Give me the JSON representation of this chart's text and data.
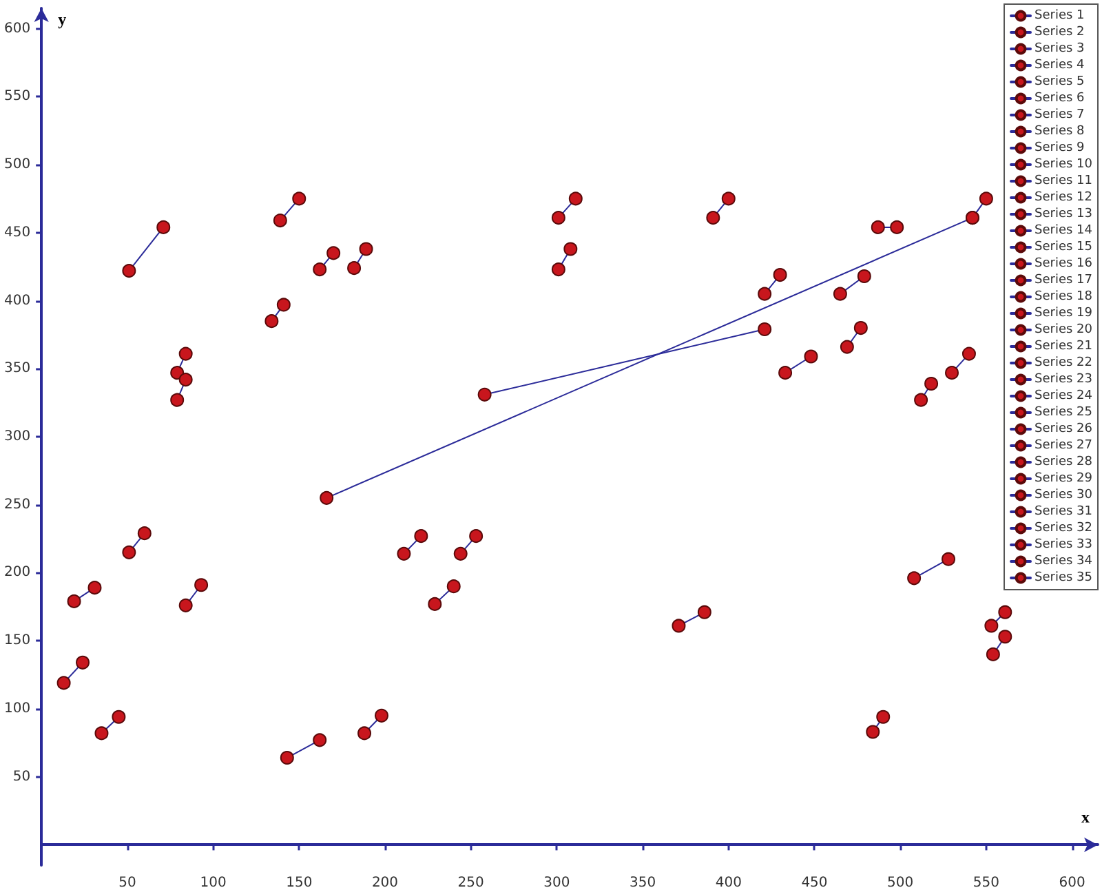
{
  "chart_data": {
    "type": "line",
    "xlabel": "x",
    "ylabel": "y",
    "xlim": [
      0,
      615
    ],
    "ylim": [
      -15,
      615
    ],
    "xticks": [
      50,
      100,
      150,
      200,
      250,
      300,
      350,
      400,
      450,
      500,
      550,
      600
    ],
    "yticks": [
      50,
      100,
      150,
      200,
      250,
      300,
      350,
      400,
      450,
      500,
      550,
      600
    ],
    "grid": false,
    "legend": "top right",
    "marker": "circle",
    "line_style": "solid",
    "series": [
      {
        "name": "Series 1",
        "color": "#c8161d",
        "x": [
          51,
          71
        ],
        "values": [
          422,
          454
        ]
      },
      {
        "name": "Series 2",
        "color": "#c8161d",
        "x": [
          79,
          84
        ],
        "values": [
          347,
          361
        ]
      },
      {
        "name": "Series 3",
        "color": "#c8161d",
        "x": [
          79,
          84
        ],
        "values": [
          327,
          342
        ]
      },
      {
        "name": "Series 4",
        "color": "#c8161d",
        "x": [
          134,
          141
        ],
        "values": [
          385,
          397
        ]
      },
      {
        "name": "Series 5",
        "color": "#c8161d",
        "x": [
          139,
          150
        ],
        "values": [
          459,
          475
        ]
      },
      {
        "name": "Series 6",
        "color": "#c8161d",
        "x": [
          162,
          170
        ],
        "values": [
          423,
          435
        ]
      },
      {
        "name": "Series 7",
        "color": "#c8161d",
        "x": [
          182,
          189
        ],
        "values": [
          424,
          438
        ]
      },
      {
        "name": "Series 8",
        "color": "#c8161d",
        "x": [
          258,
          421
        ],
        "values": [
          331,
          379
        ]
      },
      {
        "name": "Series 9",
        "color": "#c8161d",
        "x": [
          166,
          542
        ],
        "values": [
          255,
          461
        ]
      },
      {
        "name": "Series 10",
        "color": "#c8161d",
        "x": [
          301,
          311
        ],
        "values": [
          461,
          475
        ]
      },
      {
        "name": "Series 11",
        "color": "#c8161d",
        "x": [
          301,
          308
        ],
        "values": [
          423,
          438
        ]
      },
      {
        "name": "Series 12",
        "color": "#c8161d",
        "x": [
          391,
          400
        ],
        "values": [
          461,
          475
        ]
      },
      {
        "name": "Series 13",
        "color": "#c8161d",
        "x": [
          487,
          498
        ],
        "values": [
          454,
          454
        ]
      },
      {
        "name": "Series 14",
        "color": "#c8161d",
        "x": [
          542,
          550
        ],
        "values": [
          461,
          475
        ]
      },
      {
        "name": "Series 15",
        "color": "#c8161d",
        "x": [
          421,
          430
        ],
        "values": [
          405,
          419
        ]
      },
      {
        "name": "Series 16",
        "color": "#c8161d",
        "x": [
          465,
          479
        ],
        "values": [
          405,
          418
        ]
      },
      {
        "name": "Series 17",
        "color": "#c8161d",
        "x": [
          469,
          477
        ],
        "values": [
          366,
          380
        ]
      },
      {
        "name": "Series 18",
        "color": "#c8161d",
        "x": [
          433,
          448
        ],
        "values": [
          347,
          359
        ]
      },
      {
        "name": "Series 19",
        "color": "#c8161d",
        "x": [
          512,
          518
        ],
        "values": [
          327,
          339
        ]
      },
      {
        "name": "Series 20",
        "color": "#c8161d",
        "x": [
          530,
          540
        ],
        "values": [
          347,
          361
        ]
      },
      {
        "name": "Series 21",
        "color": "#c8161d",
        "x": [
          13,
          24
        ],
        "values": [
          119,
          134
        ]
      },
      {
        "name": "Series 22",
        "color": "#c8161d",
        "x": [
          19,
          31
        ],
        "values": [
          179,
          189
        ]
      },
      {
        "name": "Series 23",
        "color": "#c8161d",
        "x": [
          51,
          60
        ],
        "values": [
          215,
          229
        ]
      },
      {
        "name": "Series 24",
        "color": "#c8161d",
        "x": [
          35,
          45
        ],
        "values": [
          82,
          94
        ]
      },
      {
        "name": "Series 25",
        "color": "#c8161d",
        "x": [
          84,
          93
        ],
        "values": [
          176,
          191
        ]
      },
      {
        "name": "Series 26",
        "color": "#c8161d",
        "x": [
          143,
          162
        ],
        "values": [
          64,
          77
        ]
      },
      {
        "name": "Series 27",
        "color": "#c8161d",
        "x": [
          188,
          198
        ],
        "values": [
          82,
          95
        ]
      },
      {
        "name": "Series 28",
        "color": "#c8161d",
        "x": [
          211,
          221
        ],
        "values": [
          214,
          227
        ]
      },
      {
        "name": "Series 29",
        "color": "#c8161d",
        "x": [
          229,
          240
        ],
        "values": [
          177,
          190
        ]
      },
      {
        "name": "Series 30",
        "color": "#c8161d",
        "x": [
          244,
          253
        ],
        "values": [
          214,
          227
        ]
      },
      {
        "name": "Series 31",
        "color": "#c8161d",
        "x": [
          371,
          386
        ],
        "values": [
          161,
          171
        ]
      },
      {
        "name": "Series 32",
        "color": "#c8161d",
        "x": [
          508,
          528
        ],
        "values": [
          196,
          210
        ]
      },
      {
        "name": "Series 33",
        "color": "#c8161d",
        "x": [
          553,
          561
        ],
        "values": [
          161,
          171
        ]
      },
      {
        "name": "Series 34",
        "color": "#c8161d",
        "x": [
          554,
          561
        ],
        "values": [
          140,
          153
        ]
      },
      {
        "name": "Series 35",
        "color": "#c8161d",
        "x": [
          484,
          490
        ],
        "values": [
          83,
          94
        ]
      }
    ]
  }
}
